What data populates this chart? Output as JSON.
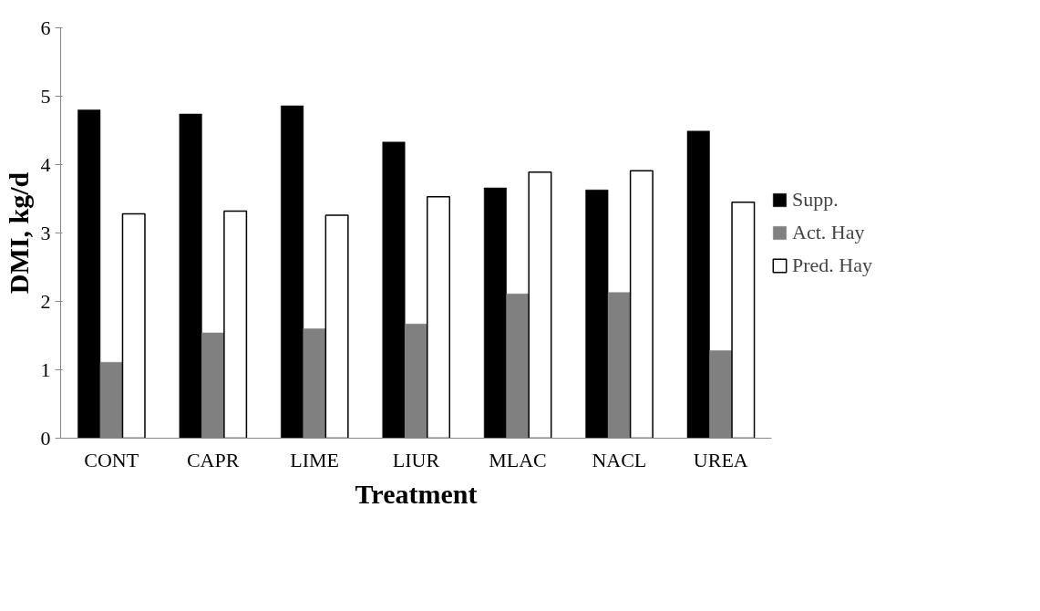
{
  "chart_data": {
    "type": "bar",
    "xlabel": "Treatment",
    "ylabel": "DMI, kg/d",
    "categories": [
      "CONT",
      "CAPR",
      "LIME",
      "LIUR",
      "MLAC",
      "NACL",
      "UREA"
    ],
    "series": [
      {
        "name": "Supp.",
        "color": "#000000",
        "values": [
          4.8,
          4.74,
          4.86,
          4.33,
          3.66,
          3.63,
          4.49
        ]
      },
      {
        "name": "Act. Hay",
        "color": "#808080",
        "values": [
          1.11,
          1.54,
          1.6,
          1.67,
          2.11,
          2.13,
          1.28
        ]
      },
      {
        "name": "Pred. Hay",
        "color": "#ffffff",
        "values": [
          3.28,
          3.32,
          3.26,
          3.53,
          3.89,
          3.91,
          3.45
        ]
      }
    ],
    "ylim": [
      0,
      6
    ],
    "yticks": [
      0,
      1,
      2,
      3,
      4,
      5,
      6
    ],
    "grid": false,
    "legend": "right"
  }
}
